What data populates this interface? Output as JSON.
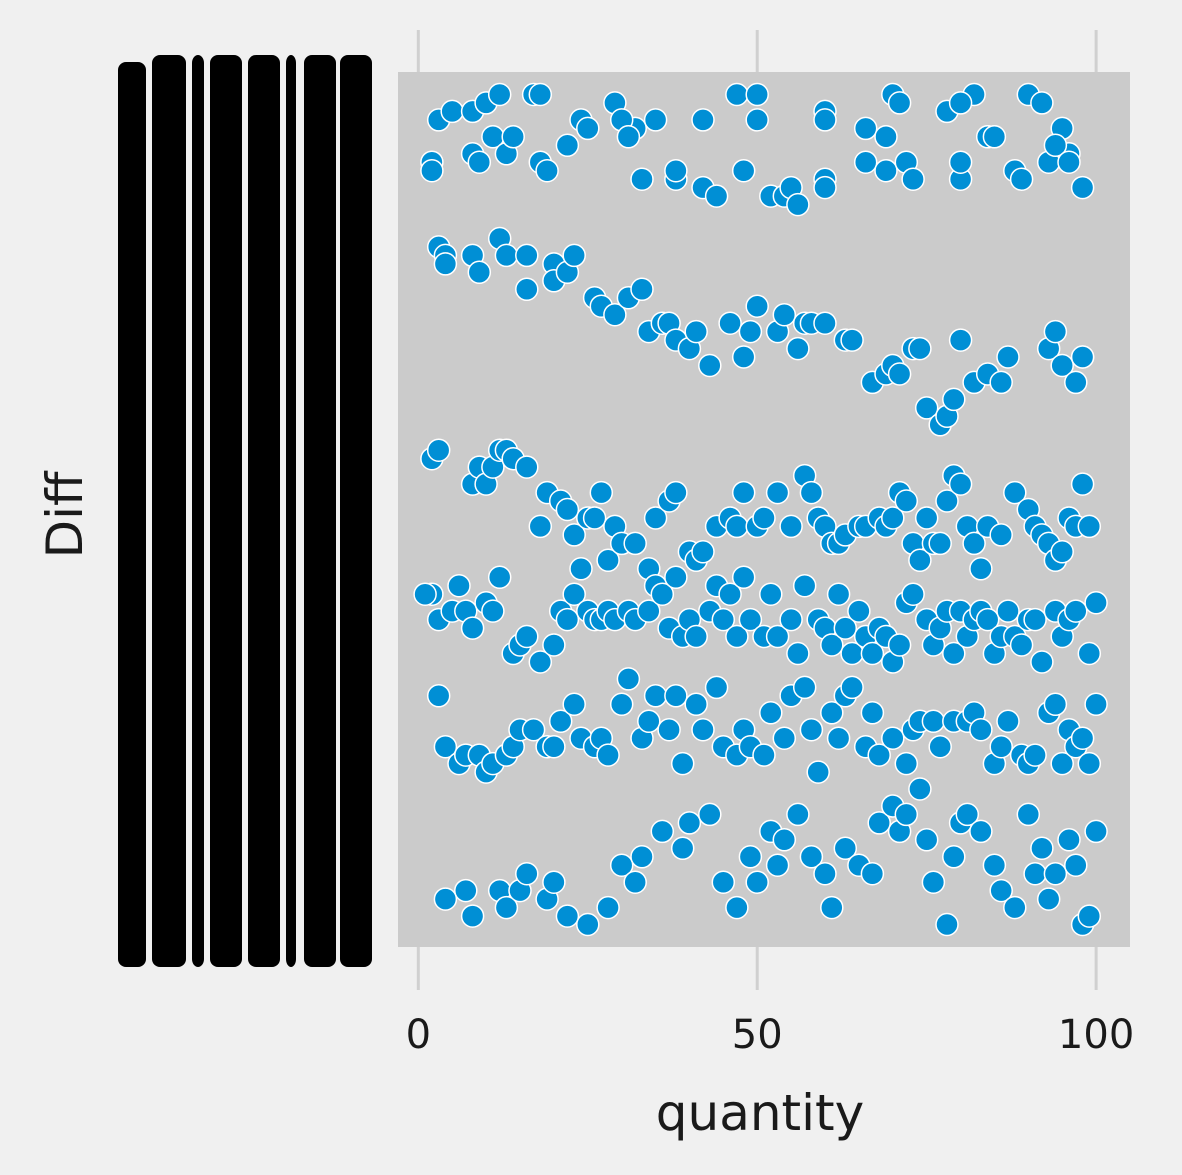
{
  "chart_data": {
    "type": "scatter",
    "xlabel": "quantity",
    "ylabel": "Diff",
    "x_ticks": [
      0,
      50,
      100
    ],
    "xlim": [
      -3,
      105
    ],
    "y_tick_labels_note": "",
    "colors": {
      "figure_bg": "#f0f0f0",
      "axes_bg": "#cbcbcb",
      "grid": "#d0d0d0",
      "point_fill": "#008fd5",
      "point_edge": "#ffffff",
      "text": "#1a1a1a"
    },
    "points_x": [
      3,
      5,
      8,
      10,
      12,
      17,
      18,
      24,
      29,
      32,
      35,
      42,
      47,
      50,
      50,
      60,
      60,
      66,
      70,
      71,
      78,
      82,
      80,
      84,
      90,
      92,
      95,
      96,
      2,
      2,
      8,
      9,
      11,
      13,
      14,
      18,
      19,
      22,
      25,
      30,
      31,
      33,
      38,
      38,
      42,
      44,
      48,
      52,
      54,
      55,
      56,
      60,
      60,
      66,
      69,
      69,
      72,
      73,
      80,
      80,
      85,
      88,
      89,
      93,
      94,
      96,
      98,
      3,
      4,
      4,
      8,
      9,
      12,
      13,
      16,
      16,
      20,
      20,
      22,
      23,
      26,
      27,
      29,
      31,
      33,
      34,
      36,
      37,
      38,
      40,
      41,
      43,
      46,
      48,
      49,
      50,
      53,
      54,
      56,
      57,
      58,
      60,
      63,
      64,
      67,
      69,
      70,
      71,
      73,
      74,
      75,
      77,
      78,
      79,
      80,
      82,
      84,
      86,
      87,
      93,
      94,
      95,
      97,
      98,
      98,
      2,
      3,
      8,
      9,
      10,
      11,
      12,
      13,
      14,
      16,
      18,
      19,
      21,
      22,
      23,
      25,
      26,
      27,
      28,
      29,
      30,
      32,
      34,
      35,
      37,
      38,
      40,
      41,
      42,
      44,
      46,
      47,
      48,
      50,
      51,
      53,
      55,
      57,
      58,
      59,
      60,
      61,
      62,
      63,
      65,
      66,
      68,
      69,
      70,
      71,
      72,
      73,
      74,
      75,
      76,
      77,
      78,
      79,
      80,
      81,
      82,
      83,
      84,
      86,
      88,
      90,
      91,
      92,
      93,
      94,
      95,
      96,
      97,
      98,
      99,
      2,
      3,
      5,
      6,
      7,
      8,
      10,
      11,
      12,
      14,
      15,
      16,
      18,
      20,
      21,
      22,
      23,
      24,
      25,
      26,
      27,
      28,
      29,
      31,
      32,
      34,
      35,
      36,
      37,
      38,
      39,
      40,
      41,
      43,
      44,
      45,
      46,
      47,
      48,
      49,
      51,
      52,
      53,
      55,
      56,
      57,
      59,
      60,
      61,
      62,
      63,
      64,
      65,
      66,
      67,
      68,
      69,
      70,
      71,
      72,
      73,
      75,
      76,
      77,
      78,
      79,
      80,
      81,
      82,
      83,
      84,
      85,
      86,
      87,
      88,
      89,
      90,
      91,
      92,
      94,
      95,
      96,
      97,
      99,
      100,
      1,
      4,
      6,
      7,
      9,
      10,
      11,
      13,
      14,
      15,
      17,
      19,
      20,
      21,
      23,
      24,
      26,
      27,
      28,
      30,
      31,
      33,
      34,
      35,
      37,
      38,
      39,
      41,
      42,
      44,
      45,
      47,
      48,
      49,
      51,
      52,
      54,
      55,
      57,
      58,
      59,
      61,
      62,
      63,
      64,
      66,
      67,
      68,
      70,
      72,
      73,
      74,
      76,
      77,
      79,
      81,
      82,
      83,
      85,
      86,
      87,
      89,
      90,
      91,
      93,
      94,
      95,
      96,
      97,
      98,
      99,
      100,
      3,
      4,
      7,
      8,
      12,
      13,
      15,
      16,
      19,
      20,
      22,
      25,
      28,
      30,
      32,
      33,
      36,
      39,
      40,
      43,
      45,
      47,
      49,
      50,
      52,
      53,
      54,
      56,
      58,
      60,
      61,
      63,
      65,
      67,
      68,
      70,
      71,
      72,
      74,
      75,
      76,
      78,
      79,
      80,
      81,
      83,
      85,
      86,
      88,
      90,
      91,
      92,
      93,
      94,
      96,
      97,
      98,
      99,
      100
    ],
    "points_y": [
      96,
      97,
      97,
      98,
      99,
      99,
      99,
      96,
      98,
      95,
      96,
      96,
      99,
      96,
      99,
      97,
      96,
      95,
      99,
      98,
      97,
      99,
      98,
      94,
      99,
      98,
      95,
      92,
      91,
      90,
      92,
      91,
      94,
      92,
      94,
      91,
      90,
      93,
      95,
      96,
      94,
      89,
      89,
      90,
      88,
      87,
      90,
      87,
      87,
      88,
      86,
      89,
      88,
      91,
      94,
      90,
      91,
      89,
      89,
      91,
      94,
      90,
      89,
      91,
      93,
      91,
      88,
      81,
      80,
      79,
      80,
      78,
      82,
      80,
      76,
      80,
      79,
      77,
      78,
      80,
      75,
      74,
      73,
      75,
      76,
      71,
      72,
      72,
      70,
      69,
      71,
      67,
      72,
      68,
      71,
      74,
      71,
      73,
      69,
      72,
      72,
      72,
      70,
      70,
      65,
      66,
      67,
      66,
      69,
      69,
      62,
      60,
      61,
      63,
      70,
      65,
      66,
      65,
      68,
      69,
      71,
      67,
      65,
      68,
      68,
      56,
      57,
      53,
      55,
      53,
      55,
      57,
      57,
      56,
      55,
      48,
      52,
      51,
      50,
      47,
      49,
      49,
      52,
      44,
      48,
      46,
      46,
      43,
      49,
      51,
      52,
      45,
      44,
      45,
      48,
      49,
      48,
      52,
      48,
      49,
      52,
      48,
      54,
      52,
      49,
      48,
      46,
      46,
      47,
      48,
      48,
      49,
      48,
      49,
      52,
      51,
      46,
      44,
      49,
      46,
      46,
      51,
      54,
      53,
      48,
      46,
      43,
      48,
      47,
      52,
      50,
      48,
      47,
      46,
      44,
      45,
      49,
      48,
      53,
      48,
      40,
      37,
      38,
      41,
      38,
      36,
      39,
      38,
      42,
      33,
      34,
      35,
      32,
      34,
      38,
      37,
      40,
      43,
      38,
      37,
      37,
      38,
      37,
      38,
      37,
      38,
      41,
      40,
      36,
      42,
      35,
      37,
      35,
      38,
      41,
      37,
      40,
      35,
      42,
      37,
      35,
      40,
      35,
      37,
      33,
      41,
      37,
      36,
      34,
      40,
      36,
      33,
      38,
      35,
      33,
      36,
      35,
      32,
      34,
      39,
      40,
      37,
      34,
      36,
      38,
      33,
      38,
      35,
      37,
      38,
      37,
      33,
      35,
      38,
      35,
      34,
      37,
      37,
      32,
      38,
      35,
      37,
      38,
      33,
      39,
      40,
      22,
      20,
      21,
      21,
      19,
      20,
      21,
      22,
      24,
      24,
      22,
      22,
      25,
      27,
      23,
      22,
      23,
      21,
      27,
      30,
      23,
      25,
      28,
      24,
      28,
      20,
      27,
      24,
      29,
      22,
      21,
      24,
      22,
      21,
      26,
      23,
      28,
      29,
      24,
      19,
      26,
      23,
      28,
      29,
      22,
      26,
      21,
      23,
      20,
      24,
      25,
      25,
      22,
      25,
      25,
      26,
      24,
      20,
      22,
      25,
      21,
      20,
      21,
      26,
      27,
      20,
      24,
      22,
      23,
      20,
      27,
      28,
      4,
      5,
      2,
      5,
      3,
      5,
      7,
      4,
      6,
      2,
      1,
      3,
      8,
      6,
      9,
      12,
      10,
      13,
      14,
      6,
      3,
      9,
      6,
      12,
      8,
      11,
      14,
      9,
      7,
      3,
      10,
      8,
      7,
      13,
      15,
      12,
      14,
      17,
      11,
      6,
      1,
      9,
      13,
      14,
      12,
      8,
      5,
      3,
      14,
      7,
      10,
      4,
      7,
      11,
      8,
      1,
      2,
      12,
      2
    ],
    "y_range": [
      0,
      100
    ]
  }
}
